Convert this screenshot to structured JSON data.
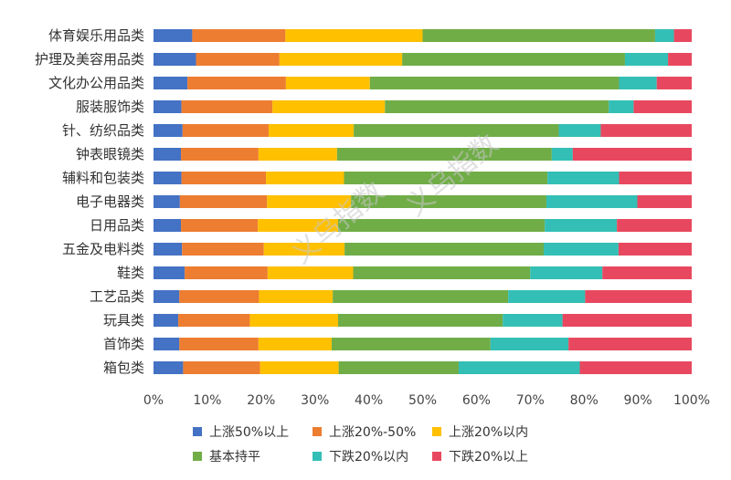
{
  "chart_data": {
    "type": "bar",
    "orientation": "horizontal",
    "stacked": "percent",
    "categories": [
      "体育娱乐用品类",
      "护理及美容用品类",
      "文化办公用品类",
      "服装服饰类",
      "针、纺织品类",
      "钟表眼镜类",
      "辅料和包装类",
      "电子电器类",
      "日用品类",
      "五金及电料类",
      "鞋类",
      "工艺品类",
      "玩具类",
      "首饰类",
      "箱包类"
    ],
    "series": [
      {
        "name": "上涨50%以上",
        "color": "#4472c4",
        "values": [
          7.2,
          7.9,
          6.3,
          5.2,
          5.4,
          5.1,
          5.2,
          4.9,
          5.1,
          5.3,
          5.8,
          4.8,
          4.6,
          4.8,
          5.5
        ]
      },
      {
        "name": "上涨20%-50%",
        "color": "#ed7d31",
        "values": [
          17.3,
          15.5,
          18.3,
          16.9,
          16.0,
          14.4,
          15.7,
          16.2,
          14.3,
          15.2,
          15.4,
          14.8,
          13.3,
          14.7,
          14.3
        ]
      },
      {
        "name": "上涨20%以内",
        "color": "#ffc000",
        "values": [
          25.5,
          22.8,
          15.6,
          20.9,
          15.8,
          14.6,
          14.5,
          15.6,
          14.9,
          15.0,
          15.9,
          13.7,
          16.4,
          13.6,
          14.6
        ]
      },
      {
        "name": "基本持平",
        "color": "#70ad47",
        "values": [
          43.2,
          41.4,
          46.3,
          41.6,
          38.1,
          39.9,
          37.8,
          36.3,
          38.4,
          37.0,
          32.9,
          32.6,
          30.6,
          29.5,
          22.3
        ]
      },
      {
        "name": "下跌20%以内",
        "color": "#33bfb6",
        "values": [
          3.5,
          8.0,
          7.0,
          4.6,
          7.8,
          3.9,
          13.3,
          16.9,
          13.4,
          13.9,
          13.4,
          14.3,
          11.1,
          14.5,
          22.5
        ]
      },
      {
        "name": "下跌20%以上",
        "color": "#e8485f",
        "values": [
          3.3,
          4.4,
          6.5,
          10.8,
          16.9,
          22.1,
          13.5,
          10.1,
          13.9,
          13.6,
          16.6,
          19.8,
          24.0,
          22.9,
          20.8
        ]
      }
    ],
    "xlim": [
      0,
      100
    ],
    "x_ticks": [
      "0%",
      "10%",
      "20%",
      "30%",
      "40%",
      "50%",
      "60%",
      "70%",
      "80%",
      "90%",
      "100%"
    ],
    "legend": "bottom",
    "grid": false
  },
  "watermark": "义乌指数"
}
